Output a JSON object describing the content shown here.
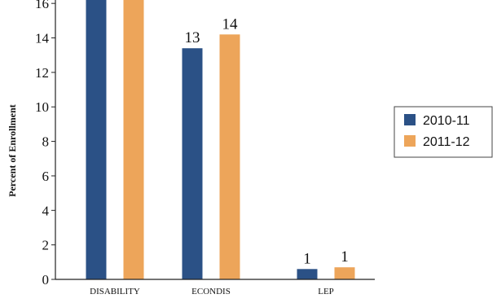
{
  "chart_data": {
    "type": "bar",
    "categories": [
      "DISABILITY",
      "ECONDIS",
      "LEP"
    ],
    "series": [
      {
        "name": "2010-11",
        "color": "#2b5186",
        "values": [
          16.8,
          13.4,
          0.6
        ],
        "labels": [
          "",
          "13",
          "1"
        ]
      },
      {
        "name": "2011-12",
        "color": "#eda55a",
        "values": [
          16.7,
          14.2,
          0.7
        ],
        "labels": [
          "",
          "14",
          "1"
        ]
      }
    ],
    "ylabel": "Percent of Enrollment",
    "xlabel": "",
    "ylim": [
      0,
      17
    ],
    "yticks": [
      0,
      2,
      4,
      6,
      8,
      10,
      12,
      14,
      16
    ],
    "grid": false,
    "legend": "right"
  }
}
